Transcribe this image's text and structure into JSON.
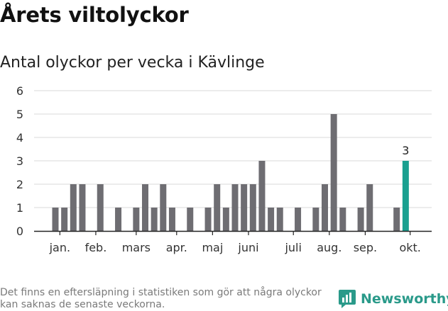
{
  "header": {
    "title": "Årets viltolyckor",
    "subtitle": "Antal olyckor per vecka i Kävlinge"
  },
  "footer": {
    "note": "Det finns en eftersläpning i statistiken som gör att några olyckor kan saknas de senaste veckorna.",
    "brand": "Newsworthy"
  },
  "colors": {
    "bar": "#6e6d72",
    "highlight": "#1aa090",
    "grid": "#d9d9d9",
    "axis": "#222222",
    "brand": "#2a9a8a"
  },
  "chart_data": {
    "type": "bar",
    "title": "Antal olyckor per vecka i Kävlinge",
    "xlabel": "",
    "ylabel": "",
    "ylim": [
      0,
      6
    ],
    "yticks": [
      0,
      1,
      2,
      3,
      4,
      5,
      6
    ],
    "grid": true,
    "weeks": [
      1,
      2,
      3,
      4,
      5,
      6,
      7,
      8,
      9,
      10,
      11,
      12,
      13,
      14,
      15,
      16,
      17,
      18,
      19,
      20,
      21,
      22,
      23,
      24,
      25,
      26,
      27,
      28,
      29,
      30,
      31,
      32,
      33,
      34,
      35,
      36,
      37,
      38,
      39,
      40
    ],
    "values": [
      1,
      1,
      2,
      2,
      0,
      2,
      0,
      1,
      0,
      1,
      2,
      1,
      2,
      1,
      0,
      1,
      0,
      1,
      2,
      1,
      2,
      2,
      2,
      3,
      1,
      1,
      0,
      1,
      0,
      1,
      2,
      5,
      1,
      0,
      1,
      2,
      0,
      0,
      1,
      3
    ],
    "highlight_index": 39,
    "highlight_label": "3",
    "month_labels": [
      {
        "label": "jan.",
        "week": 1.5
      },
      {
        "label": "feb.",
        "week": 5.5
      },
      {
        "label": "mars",
        "week": 10.0
      },
      {
        "label": "apr.",
        "week": 14.5
      },
      {
        "label": "maj",
        "week": 18.5
      },
      {
        "label": "juni",
        "week": 22.5
      },
      {
        "label": "juli",
        "week": 27.5
      },
      {
        "label": "aug.",
        "week": 31.5
      },
      {
        "label": "sep.",
        "week": 35.5
      },
      {
        "label": "okt.",
        "week": 40.5
      }
    ]
  }
}
